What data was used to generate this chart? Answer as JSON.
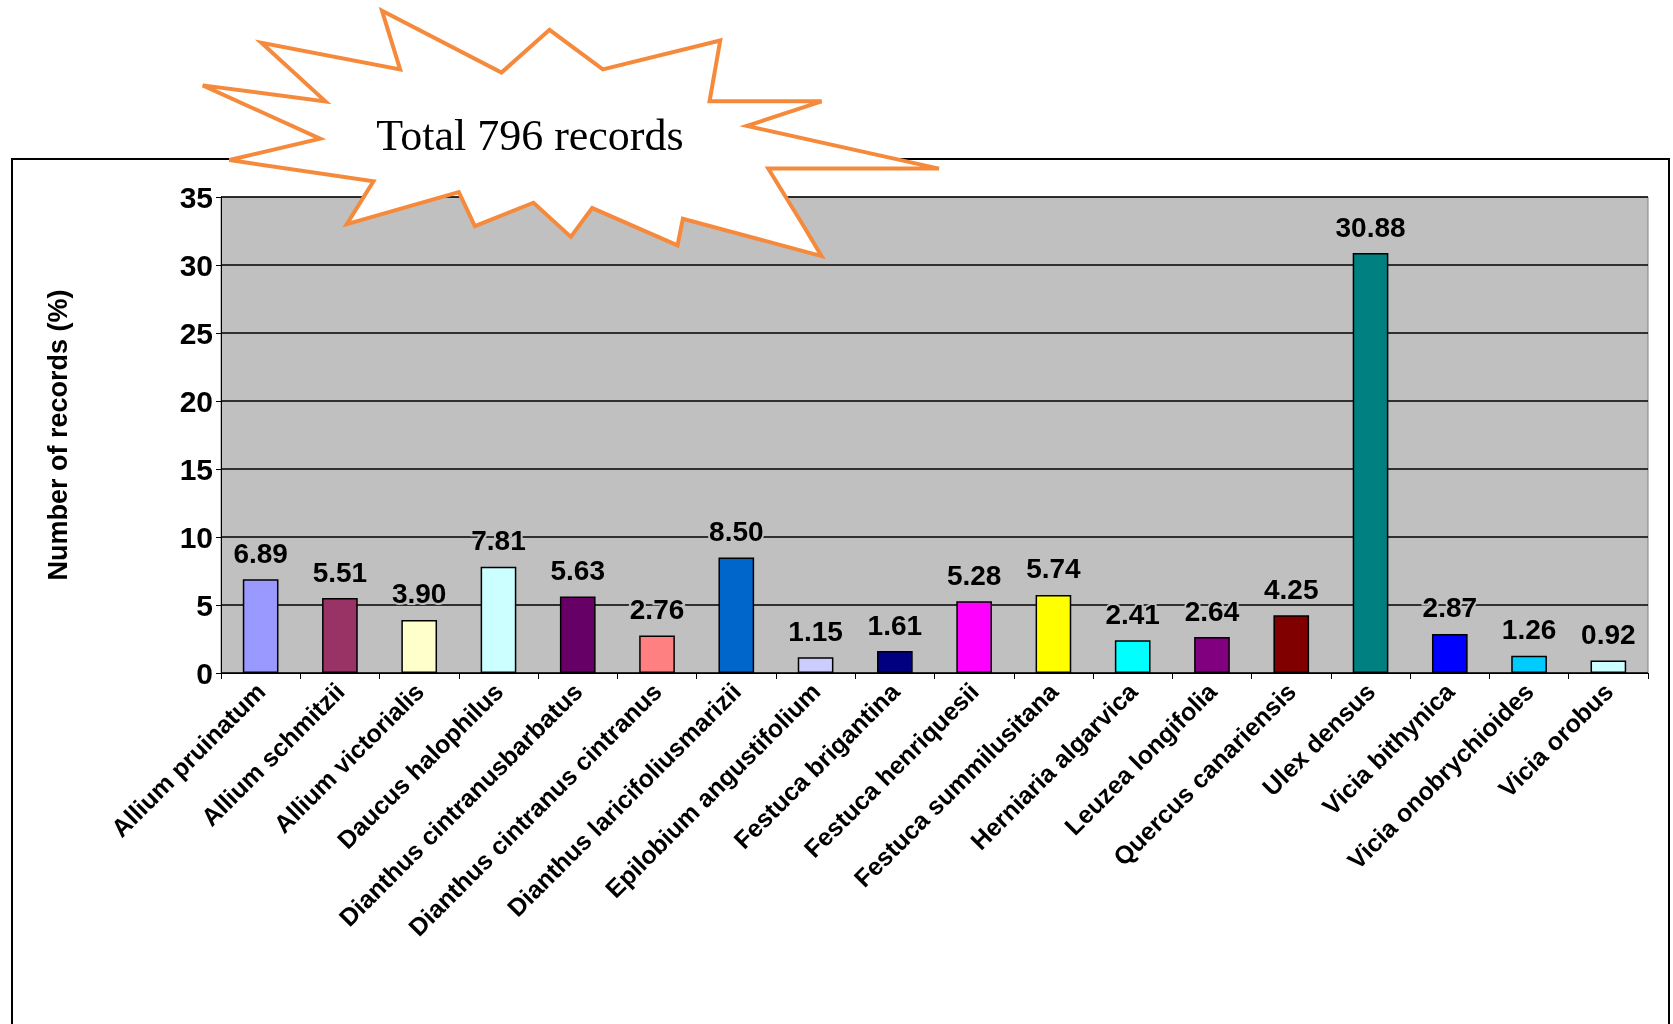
{
  "chart_data": {
    "type": "bar",
    "ylabel": "Number of records (%)",
    "annotations": [
      "Total 796 records"
    ],
    "categories": [
      "Allium pruinatum",
      "Allium schmitzii",
      "Allium victorialis",
      "Daucus halophilus",
      "Dianthus cintranusbarbatus",
      "Dianthus cintranus cintranus",
      "Dianthus laricifoliusmarizii",
      "Epilobium angustifolium",
      "Festuca brigantina",
      "Festuca henriquesii",
      "Festuca summilusitana",
      "Herniaria algarvica",
      "Leuzea longifolia",
      "Quercus canariensis",
      "Ulex densus",
      "Vicia bithynica",
      "Vicia onobrychioides",
      "Vicia orobus"
    ],
    "values": [
      6.89,
      5.51,
      3.9,
      7.81,
      5.63,
      2.76,
      8.5,
      1.15,
      1.61,
      5.28,
      5.74,
      2.41,
      2.64,
      4.25,
      30.88,
      2.87,
      1.26,
      0.92
    ],
    "value_labels": [
      "6.89",
      "5.51",
      "3.90",
      "7.81",
      "5.63",
      "2.76",
      "8.50",
      "1.15",
      "1.61",
      "5.28",
      "5.74",
      "2.41",
      "2.64",
      "4.25",
      "30.88",
      "2.87",
      "1.26",
      "0.92"
    ],
    "colors": [
      "#9999ff",
      "#993366",
      "#ffffcc",
      "#ccffff",
      "#660066",
      "#ff8080",
      "#0066cc",
      "#ccccff",
      "#000080",
      "#ff00ff",
      "#ffff00",
      "#00ffff",
      "#800080",
      "#800000",
      "#008080",
      "#0000ff",
      "#00ccff",
      "#ccffff"
    ],
    "ylim": [
      0,
      35
    ],
    "yticks": [
      0,
      5,
      10,
      15,
      20,
      25,
      30,
      35
    ],
    "grid": "y"
  }
}
